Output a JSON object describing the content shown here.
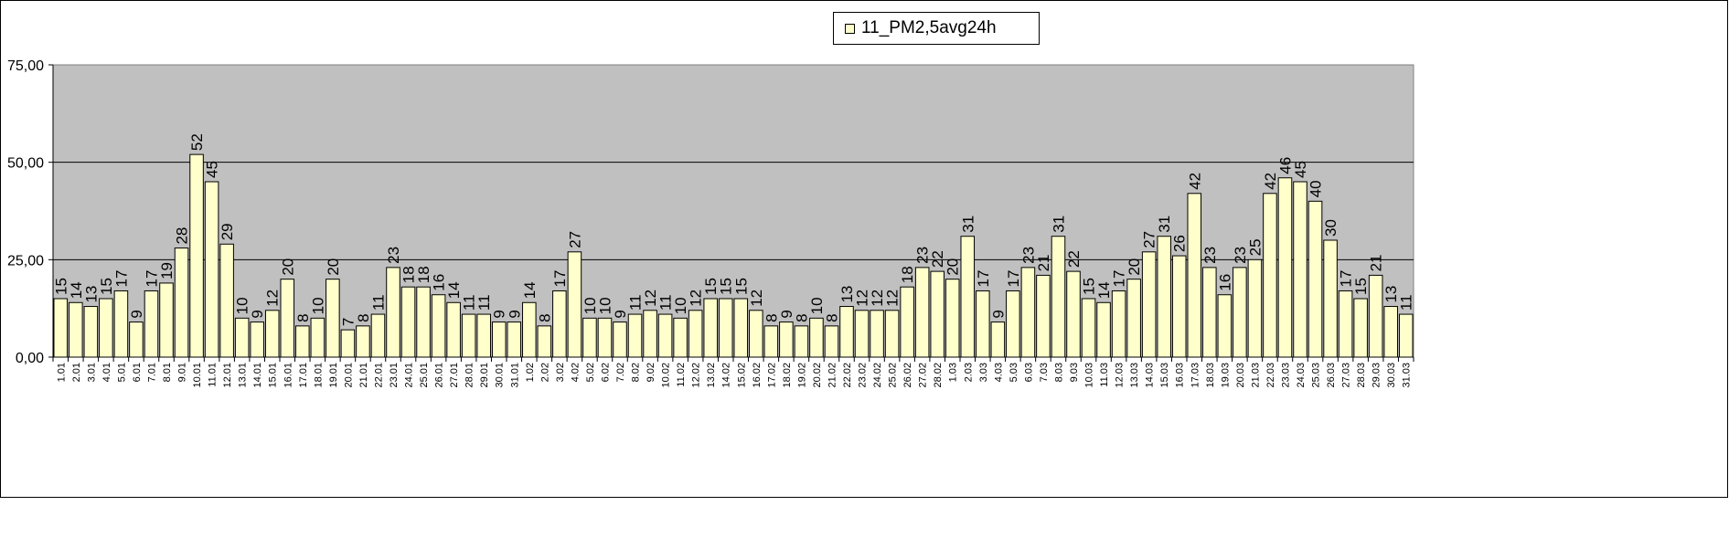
{
  "chart_data": {
    "type": "bar",
    "legend_position": "top-center",
    "grid": true,
    "colors": {
      "plot_area": "#c0c0c0",
      "bar_fill": "#ffffcc",
      "bar_stroke": "#000000",
      "gridline": "#000000"
    },
    "ylim": [
      0,
      75
    ],
    "yticks": [
      "0,00",
      "25,00",
      "50,00",
      "75,00"
    ],
    "categories": [
      "1.01",
      "2.01",
      "3.01",
      "4.01",
      "5.01",
      "6.01",
      "7.01",
      "8.01",
      "9.01",
      "10.01",
      "11.01",
      "12.01",
      "13.01",
      "14.01",
      "15.01",
      "16.01",
      "17.01",
      "18.01",
      "19.01",
      "20.01",
      "21.01",
      "22.01",
      "23.01",
      "24.01",
      "25.01",
      "26.01",
      "27.01",
      "28.01",
      "29.01",
      "30.01",
      "31.01",
      "1.02",
      "2.02",
      "3.02",
      "4.02",
      "5.02",
      "6.02",
      "7.02",
      "8.02",
      "9.02",
      "10.02",
      "11.02",
      "12.02",
      "13.02",
      "14.02",
      "15.02",
      "16.02",
      "17.02",
      "18.02",
      "19.02",
      "20.02",
      "21.02",
      "22.02",
      "23.02",
      "24.02",
      "25.02",
      "26.02",
      "27.02",
      "28.02",
      "1.03",
      "2.03",
      "3.03",
      "4.03",
      "5.03",
      "6.03",
      "7.03",
      "8.03",
      "9.03",
      "10.03",
      "11.03",
      "12.03",
      "13.03",
      "14.03",
      "15.03",
      "16.03",
      "17.03",
      "18.03",
      "19.03",
      "20.03",
      "21.03",
      "22.03",
      "23.03",
      "24.03",
      "25.03",
      "26.03",
      "27.03",
      "28.03",
      "29.03",
      "30.03",
      "31.03"
    ],
    "series": [
      {
        "name": "11_PM2,5avg24h",
        "values": [
          15,
          14,
          13,
          15,
          17,
          9,
          17,
          19,
          28,
          52,
          45,
          29,
          10,
          9,
          12,
          20,
          8,
          10,
          20,
          7,
          8,
          11,
          23,
          18,
          18,
          16,
          14,
          11,
          11,
          9,
          9,
          14,
          8,
          17,
          27,
          10,
          10,
          9,
          11,
          12,
          11,
          10,
          12,
          15,
          15,
          15,
          12,
          8,
          9,
          8,
          10,
          8,
          13,
          12,
          12,
          12,
          18,
          23,
          22,
          20,
          31,
          17,
          9,
          17,
          23,
          21,
          31,
          22,
          15,
          14,
          17,
          20,
          27,
          31,
          26,
          42,
          23,
          16,
          23,
          25,
          42,
          46,
          45,
          40,
          30,
          17,
          15,
          21,
          13,
          11
        ],
        "labels": [
          "15",
          "14",
          "13",
          "15",
          "17",
          "9",
          "17",
          "19",
          "28",
          "52",
          "45",
          "29",
          "10",
          "9",
          "12",
          "20",
          "8",
          "10",
          "20",
          "7",
          "8",
          "11",
          "23",
          "18",
          "18",
          "16",
          "14",
          "11",
          "11",
          "9",
          "9",
          "14",
          "8",
          "17",
          "27",
          "10",
          "10",
          "9",
          "11",
          "12",
          "11",
          "10",
          "12",
          "15",
          "15",
          "15",
          "12",
          "8",
          "9",
          "8",
          "10",
          "8",
          "13",
          "12",
          "12",
          "12",
          "18",
          "23",
          "22",
          "20",
          "31",
          "17",
          "9",
          "17",
          "23",
          "21",
          "31",
          "22",
          "15",
          "14",
          "17",
          "20",
          "27",
          "31",
          "26",
          "42",
          "23",
          "16",
          "23",
          "25",
          "42",
          "46",
          "45",
          "40",
          "30",
          "17",
          "15",
          "21",
          "13",
          "11"
        ]
      }
    ]
  }
}
